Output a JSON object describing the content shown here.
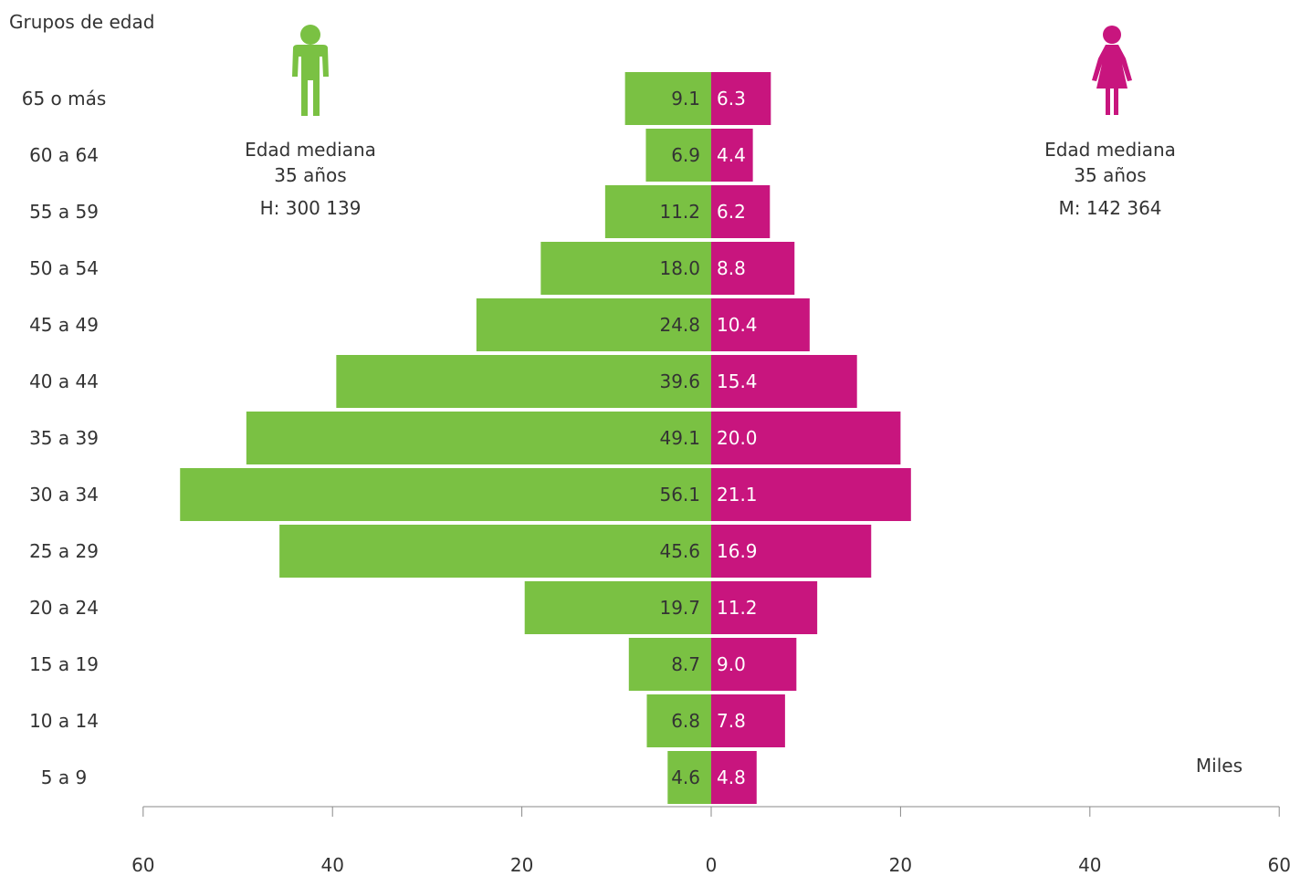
{
  "chart_data": {
    "type": "bar",
    "subtype": "population-pyramid",
    "title": "",
    "ylabel": "Grupos de edad",
    "xlabel": "",
    "unit_label": "Miles",
    "xlim": [
      -60,
      60
    ],
    "x_ticks": [
      -60,
      -40,
      -20,
      0,
      20,
      40,
      60
    ],
    "x_tick_labels": [
      "60",
      "40",
      "20",
      "0",
      "20",
      "40",
      "60"
    ],
    "grid": false,
    "categories": [
      "65 o más",
      "60 a 64",
      "55 a 59",
      "50 a 54",
      "45 a 49",
      "40 a 44",
      "35 a 39",
      "30 a 34",
      "25 a 29",
      "20 a 24",
      "15 a 19",
      "10 a 14",
      "5 a 9"
    ],
    "series": [
      {
        "key": "hombres",
        "values": [
          9.1,
          6.9,
          11.2,
          18.0,
          24.8,
          39.6,
          49.1,
          56.1,
          45.6,
          19.7,
          8.7,
          6.8,
          4.6
        ],
        "labels": [
          "9.1",
          "6.9",
          "11.2",
          "18.0",
          "24.8",
          "39.6",
          "49.1",
          "56.1",
          "45.6",
          "19.7",
          "8.7",
          "6.8",
          "4.6"
        ],
        "color": "#7ac143",
        "side": "left"
      },
      {
        "key": "mujeres",
        "values": [
          6.3,
          4.4,
          6.2,
          8.8,
          10.4,
          15.4,
          20.0,
          21.1,
          16.9,
          11.2,
          9.0,
          7.8,
          4.8
        ],
        "labels": [
          "6.3",
          "4.4",
          "6.2",
          "8.8",
          "10.4",
          "15.4",
          "20.0",
          "21.1",
          "16.9",
          "11.2",
          "9.0",
          "7.8",
          "4.8"
        ],
        "color": "#c8157e",
        "side": "right"
      }
    ],
    "legend": "top"
  },
  "men_panel": {
    "icon": "man-icon",
    "median_label": "Edad mediana",
    "median_value": "35 años",
    "total": "H: 300 139",
    "color": "#7ac143"
  },
  "women_panel": {
    "icon": "woman-icon",
    "median_label": "Edad mediana",
    "median_value": "35 años",
    "total": "M: 142 364",
    "color": "#c8157e"
  }
}
